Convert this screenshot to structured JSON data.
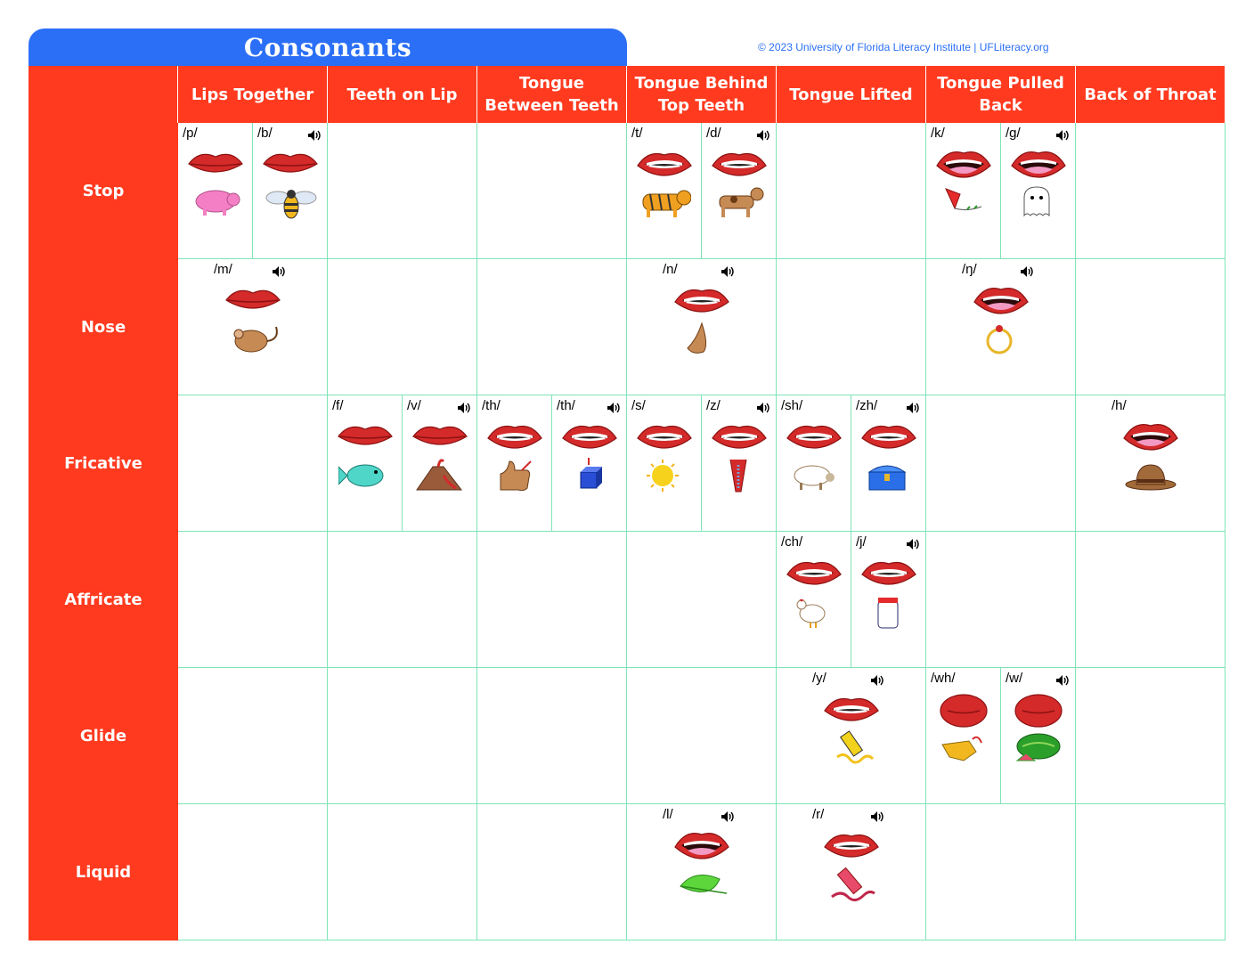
{
  "title": "Consonants",
  "credit": "© 2023 University of Florida Literacy Institute | UFLiteracy.org",
  "columns": [
    "Lips Together",
    "Teeth on Lip",
    "Tongue\nBetween Teeth",
    "Tongue Behind\nTop Teeth",
    "Tongue Lifted",
    "Tongue Pulled\nBack",
    "Back of Throat"
  ],
  "rows": [
    "Stop",
    "Nose",
    "Fricative",
    "Affricate",
    "Glide",
    "Liquid"
  ],
  "colors": {
    "header": "#ff3a1f",
    "title_tab": "#2b6ff6",
    "grid_line": "#7ee4b6",
    "lips": "#d42a2a",
    "tongue": "#f29ac4"
  },
  "sounds": {
    "p": "/p/",
    "b": "/b/",
    "t": "/t/",
    "d": "/d/",
    "k": "/k/",
    "g": "/g/",
    "m": "/m/",
    "n": "/n/",
    "ng": "/ŋ/",
    "f": "/f/",
    "v": "/v/",
    "th1": "/th/",
    "th2": "/th/",
    "s": "/s/",
    "z": "/z/",
    "sh": "/sh/",
    "zh": "/zh/",
    "h": "/h/",
    "ch": "/ch/",
    "j": "/j/",
    "y": "/y/",
    "wh": "/wh/",
    "w": "/w/",
    "l": "/l/",
    "r": "/r/"
  },
  "icons": {
    "p": "pig-icon",
    "b": "bee-icon",
    "t": "tiger-icon",
    "d": "dog-icon",
    "k": "kite-icon",
    "g": "ghost-icon",
    "m": "mouse-icon",
    "n": "nose-icon",
    "ng": "ring-icon",
    "f": "fish-icon",
    "v": "volcano-icon",
    "th1": "thumb-icon",
    "th2": "cube-icon",
    "s": "sun-icon",
    "z": "zipper-icon",
    "sh": "sheep-icon",
    "zh": "treasure-icon",
    "h": "hat-icon",
    "ch": "chicken-icon",
    "j": "jar-icon",
    "y": "yarn-icon",
    "wh": "whistle-icon",
    "w": "watermelon-icon",
    "l": "leaf-icon",
    "r": "red-crayon-icon"
  }
}
